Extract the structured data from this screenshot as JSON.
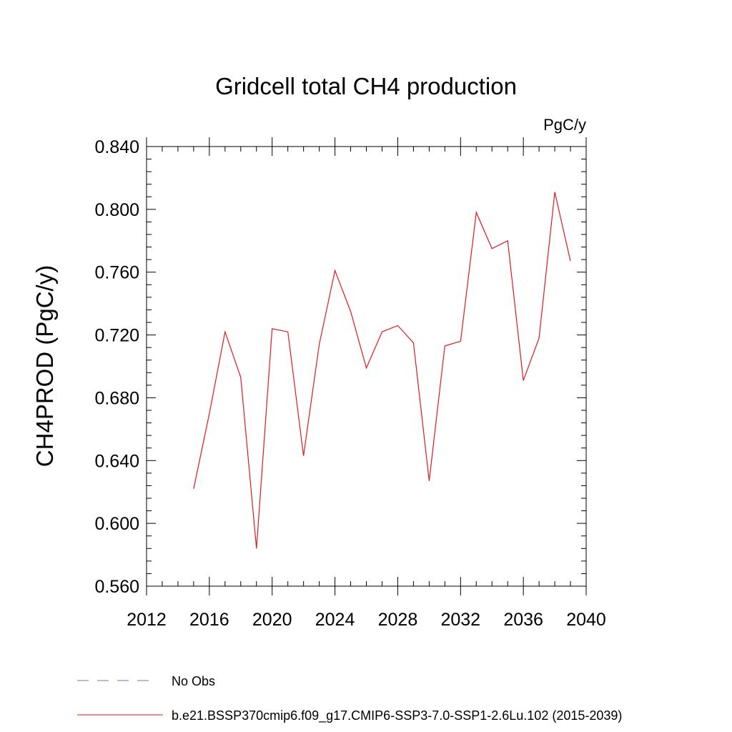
{
  "chart_data": {
    "type": "line",
    "title": "Gridcell total CH4 production",
    "units_label": "PgC/y",
    "ylabel": "CH4PROD  (PgC/y)",
    "xlabel": "",
    "xlim": [
      2012,
      2040
    ],
    "ylim": [
      0.56,
      0.84
    ],
    "x_ticks": [
      2012,
      2016,
      2020,
      2024,
      2028,
      2032,
      2036,
      2040
    ],
    "x_tick_labels": [
      "2012",
      "2016",
      "2020",
      "2024",
      "2028",
      "2032",
      "2036",
      "2040"
    ],
    "y_ticks": [
      0.56,
      0.6,
      0.64,
      0.68,
      0.72,
      0.76,
      0.8,
      0.84
    ],
    "y_tick_labels": [
      "0.560",
      "0.600",
      "0.640",
      "0.680",
      "0.720",
      "0.760",
      "0.800",
      "0.840"
    ],
    "grid": false,
    "series": [
      {
        "name": "b.e21.BSSP370cmip6.f09_g17.CMIP6-SSP3-7.0-SSP1-2.6Lu.102 (2015-2039)",
        "color": "#e0191c",
        "x": [
          2015,
          2016,
          2017,
          2018,
          2019,
          2020,
          2021,
          2022,
          2023,
          2024,
          2025,
          2026,
          2027,
          2028,
          2029,
          2030,
          2031,
          2032,
          2033,
          2034,
          2035,
          2036,
          2037,
          2038,
          2039
        ],
        "y": [
          0.622,
          0.67,
          0.722,
          0.693,
          0.584,
          0.724,
          0.722,
          0.643,
          0.714,
          0.761,
          0.735,
          0.699,
          0.722,
          0.726,
          0.715,
          0.627,
          0.713,
          0.716,
          0.798,
          0.775,
          0.78,
          0.691,
          0.718,
          0.811,
          0.767
        ]
      }
    ],
    "legend": [
      {
        "label": "No Obs",
        "style": "dashed",
        "color": "#7a6fc0"
      },
      {
        "label": "b.e21.BSSP370cmip6.f09_g17.CMIP6-SSP3-7.0-SSP1-2.6Lu.102 (2015-2039)",
        "style": "solid",
        "color": "#e0191c"
      }
    ],
    "legend_position": "bottom"
  }
}
